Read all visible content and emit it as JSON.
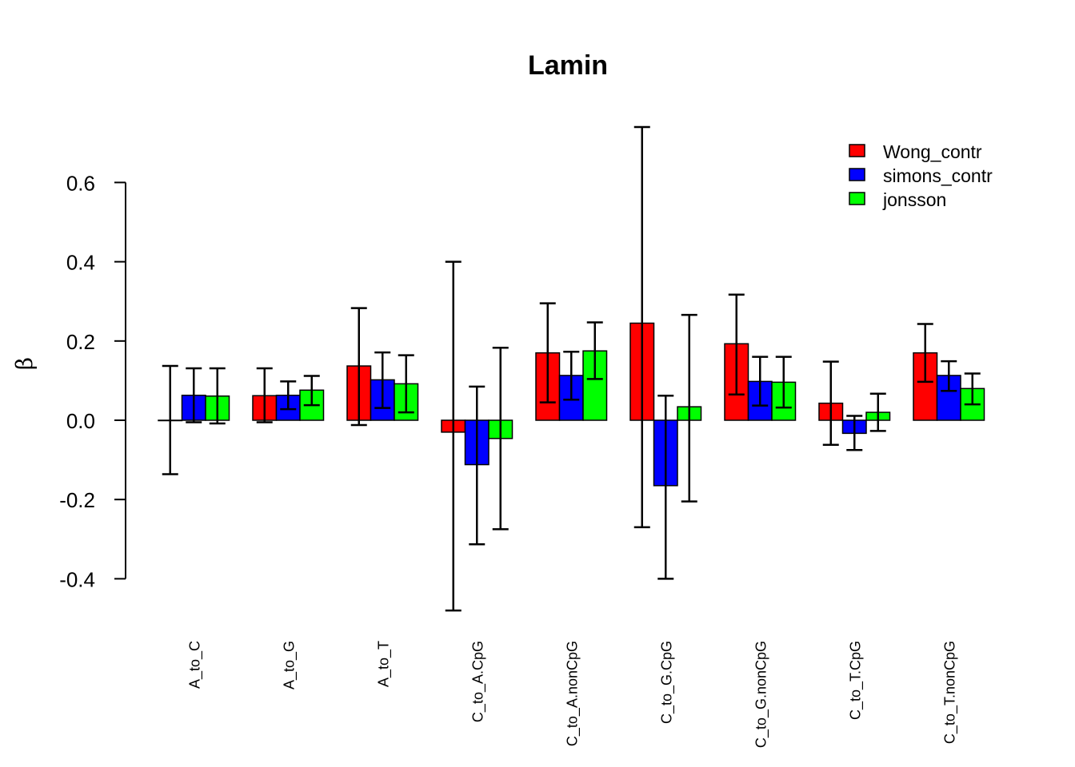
{
  "chart_data": {
    "type": "bar",
    "title": "Lamin",
    "ylabel": "β",
    "xlabel": "",
    "ylim": [
      -0.48,
      0.74
    ],
    "yticks": [
      -0.4,
      -0.2,
      0.0,
      0.2,
      0.4,
      0.6
    ],
    "ytick_labels": [
      "-0.4",
      "-0.2",
      "0.0",
      "0.2",
      "0.4",
      "0.6"
    ],
    "categories": [
      "A_to_C",
      "A_to_G",
      "A_to_T",
      "C_to_A.CpG",
      "C_to_A.nonCpG",
      "C_to_G.CpG",
      "C_to_G.nonCpG",
      "C_to_T.CpG",
      "C_to_T.nonCpG"
    ],
    "legend_position": "top-right",
    "grid": false,
    "series": [
      {
        "name": "Wong_contr",
        "color": "#ff0000",
        "values": [
          0.0,
          0.062,
          0.137,
          -0.03,
          0.17,
          0.245,
          0.193,
          0.043,
          0.17
        ],
        "lower": [
          -0.136,
          -0.005,
          -0.012,
          -0.48,
          0.045,
          -0.27,
          0.065,
          -0.062,
          0.097
        ],
        "upper": [
          0.137,
          0.131,
          0.283,
          0.4,
          0.295,
          0.74,
          0.317,
          0.148,
          0.243
        ]
      },
      {
        "name": "simons_contr",
        "color": "#0000ff",
        "values": [
          0.063,
          0.063,
          0.102,
          -0.112,
          0.113,
          -0.165,
          0.098,
          -0.033,
          0.113
        ],
        "lower": [
          -0.005,
          0.028,
          0.031,
          -0.313,
          0.052,
          -0.4,
          0.037,
          -0.075,
          0.074
        ],
        "upper": [
          0.131,
          0.098,
          0.171,
          0.085,
          0.173,
          0.062,
          0.16,
          0.011,
          0.149
        ]
      },
      {
        "name": "jonsson",
        "color": "#00ff00",
        "values": [
          0.061,
          0.076,
          0.092,
          -0.046,
          0.175,
          0.034,
          0.096,
          0.02,
          0.08
        ],
        "lower": [
          -0.008,
          0.038,
          0.02,
          -0.275,
          0.104,
          -0.205,
          0.032,
          -0.027,
          0.04
        ],
        "upper": [
          0.131,
          0.112,
          0.164,
          0.183,
          0.247,
          0.266,
          0.16,
          0.067,
          0.118
        ]
      }
    ]
  }
}
